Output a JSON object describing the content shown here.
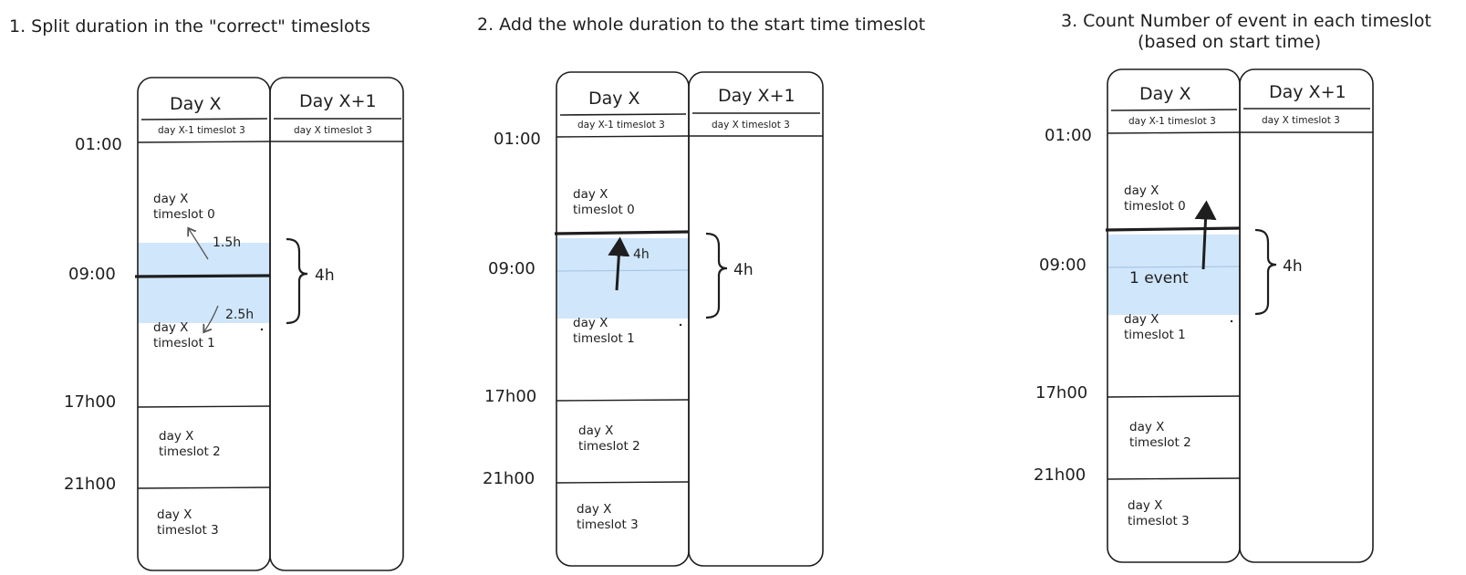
{
  "panels": [
    {
      "title": "1. Split duration in the \"correct\" timeslots",
      "day_x": "Day X",
      "day_x1": "Day X+1",
      "day_x_sub": "day X-1 timeslot 3",
      "day_x1_sub": "day X timeslot 3",
      "times": [
        "01:00",
        "09:00",
        "17h00",
        "21h00"
      ],
      "slots": [
        [
          "day X",
          "timeslot 0"
        ],
        [
          "day X",
          "timeslot 1"
        ],
        [
          "day X",
          "timeslot 2"
        ],
        [
          "day X",
          "timeslot 3"
        ]
      ],
      "duration": "4h",
      "split_before": "1.5h",
      "split_after": "2.5h"
    },
    {
      "title": "2. Add the whole duration to the start time timeslot",
      "day_x": "Day X",
      "day_x1": "Day X+1",
      "day_x_sub": "day X-1 timeslot 3",
      "day_x1_sub": "day X timeslot 3",
      "times": [
        "01:00",
        "09:00",
        "17h00",
        "21h00"
      ],
      "slots": [
        [
          "day X",
          "timeslot 0"
        ],
        [
          "day X",
          "timeslot 1"
        ],
        [
          "day X",
          "timeslot 2"
        ],
        [
          "day X",
          "timeslot 3"
        ]
      ],
      "duration": "4h",
      "inner_label": "4h"
    },
    {
      "title_line1": "3. Count Number of event in each timeslot",
      "title_line2": "(based on start time)",
      "day_x": "Day X",
      "day_x1": "Day X+1",
      "day_x_sub": "day X-1 timeslot 3",
      "day_x1_sub": "day X timeslot 3",
      "times": [
        "01:00",
        "09:00",
        "17h00",
        "21h00"
      ],
      "slots": [
        [
          "day X",
          "timeslot 0"
        ],
        [
          "day X",
          "timeslot 1"
        ],
        [
          "day X",
          "timeslot 2"
        ],
        [
          "day X",
          "timeslot 3"
        ]
      ],
      "duration": "4h",
      "event_label": "1 event"
    }
  ],
  "colors": {
    "stroke": "#1e1e1e",
    "highlight": "#d0e6fb",
    "highlight_line": "#a9c7e3"
  }
}
